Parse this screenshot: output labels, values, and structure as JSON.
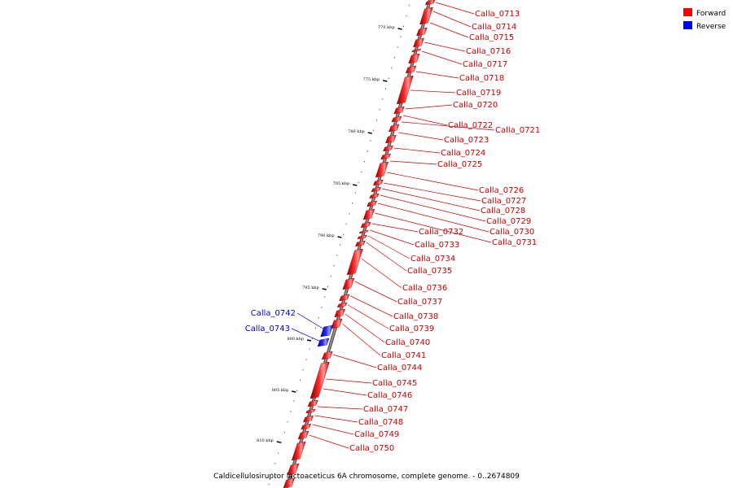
{
  "legend": {
    "forward": {
      "label": "Forward",
      "color": "#ff0000"
    },
    "reverse": {
      "label": "Reverse",
      "color": "#0000ff"
    }
  },
  "caption": "Caldicellulosiruptor lactoaceticus 6A chromosome, complete genome. - 0..2674809",
  "axis": {
    "ticks": [
      {
        "kbp": 770,
        "label": "770 kbp"
      },
      {
        "kbp": 775,
        "label": "775 kbp"
      },
      {
        "kbp": 780,
        "label": "780 kbp"
      },
      {
        "kbp": 785,
        "label": "785 kbp"
      },
      {
        "kbp": 790,
        "label": "790 kbp"
      },
      {
        "kbp": 795,
        "label": "795 kbp"
      },
      {
        "kbp": 800,
        "label": "800 kbp"
      },
      {
        "kbp": 805,
        "label": "805 kbp"
      },
      {
        "kbp": 810,
        "label": "810 kbp"
      }
    ]
  },
  "genes": [
    {
      "name": "Calla_0713",
      "strand": "forward"
    },
    {
      "name": "Calla_0714",
      "strand": "forward"
    },
    {
      "name": "Calla_0715",
      "strand": "forward"
    },
    {
      "name": "Calla_0716",
      "strand": "forward"
    },
    {
      "name": "Calla_0717",
      "strand": "forward"
    },
    {
      "name": "Calla_0718",
      "strand": "forward"
    },
    {
      "name": "Calla_0719",
      "strand": "forward"
    },
    {
      "name": "Calla_0720",
      "strand": "forward"
    },
    {
      "name": "Calla_0722",
      "strand": "forward"
    },
    {
      "name": "Calla_0721",
      "strand": "forward"
    },
    {
      "name": "Calla_0723",
      "strand": "forward"
    },
    {
      "name": "Calla_0724",
      "strand": "forward"
    },
    {
      "name": "Calla_0725",
      "strand": "forward"
    },
    {
      "name": "Calla_0726",
      "strand": "forward"
    },
    {
      "name": "Calla_0727",
      "strand": "forward"
    },
    {
      "name": "Calla_0728",
      "strand": "forward"
    },
    {
      "name": "Calla_0729",
      "strand": "forward"
    },
    {
      "name": "Calla_0730",
      "strand": "forward"
    },
    {
      "name": "Calla_0731",
      "strand": "forward"
    },
    {
      "name": "Calla_0732",
      "strand": "forward"
    },
    {
      "name": "Calla_0733",
      "strand": "forward"
    },
    {
      "name": "Calla_0734",
      "strand": "forward"
    },
    {
      "name": "Calla_0735",
      "strand": "forward"
    },
    {
      "name": "Calla_0736",
      "strand": "forward"
    },
    {
      "name": "Calla_0737",
      "strand": "forward"
    },
    {
      "name": "Calla_0738",
      "strand": "forward"
    },
    {
      "name": "Calla_0739",
      "strand": "forward"
    },
    {
      "name": "Calla_0740",
      "strand": "forward"
    },
    {
      "name": "Calla_0741",
      "strand": "forward"
    },
    {
      "name": "Calla_0744",
      "strand": "forward"
    },
    {
      "name": "Calla_0745",
      "strand": "forward"
    },
    {
      "name": "Calla_0746",
      "strand": "forward"
    },
    {
      "name": "Calla_0747",
      "strand": "forward"
    },
    {
      "name": "Calla_0748",
      "strand": "forward"
    },
    {
      "name": "Calla_0749",
      "strand": "forward"
    },
    {
      "name": "Calla_0750",
      "strand": "forward"
    },
    {
      "name": "Calla_0742",
      "strand": "reverse"
    },
    {
      "name": "Calla_0743",
      "strand": "reverse"
    }
  ]
}
